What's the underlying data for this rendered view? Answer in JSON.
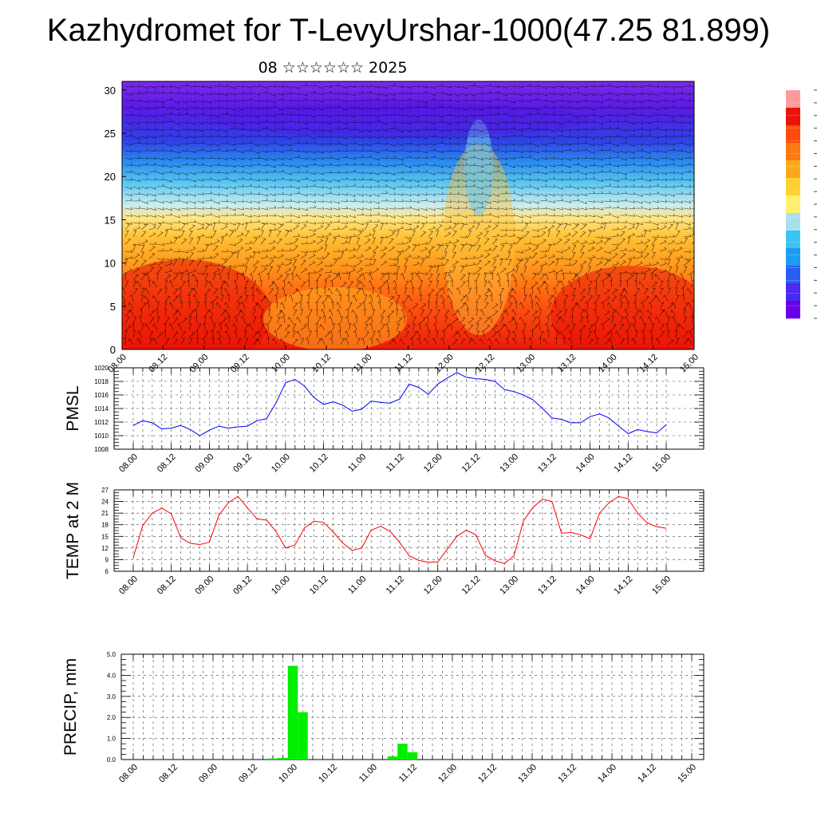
{
  "header": {
    "title": "Kazhydromet for T-LevyUrshar-1000(47.25 81.899)",
    "subtitle": "08 ☆☆☆☆☆☆ 2025"
  },
  "colors": {
    "pmsl_line": "#0000ff",
    "temp_line": "#ff0000",
    "precip_bar": "#00ee00",
    "frame": "#000000",
    "grid": "#000000"
  },
  "chart_data": [
    {
      "type": "heatmap",
      "id": "section",
      "title": "",
      "xlabel": "",
      "ylabel": "",
      "x_tick_labels": [
        "08.00",
        "08.12",
        "09.00",
        "09.12",
        "10.00",
        "10.12",
        "11.00",
        "11.12",
        "12.00",
        "12.12",
        "13.00",
        "13.12",
        "14.00",
        "14.12",
        "15.00"
      ],
      "ylim": [
        0,
        31
      ],
      "yticks": [
        0,
        5,
        10,
        15,
        20,
        25,
        30
      ],
      "wind_barbs": true,
      "colorbar": {
        "colors": [
          "#6a00e8",
          "#4a2af0",
          "#2a5ef2",
          "#1c9cf2",
          "#3cc4f0",
          "#a8e0ee",
          "#fff070",
          "#ffd030",
          "#ffa91a",
          "#ff7a10",
          "#ff4a0a",
          "#e8140a",
          "#ff9a9a"
        ]
      }
    },
    {
      "type": "line",
      "id": "pmsl",
      "ylabel": "PMSL",
      "ylim": [
        1008,
        1020
      ],
      "yticks": [
        1008,
        1010,
        1012,
        1014,
        1016,
        1018,
        1020
      ],
      "x_tick_labels": [
        "08.00",
        "08.12",
        "09.00",
        "09.12",
        "10.00",
        "10.12",
        "11.00",
        "11.12",
        "12.00",
        "12.12",
        "13.00",
        "13.12",
        "14.00",
        "14.12",
        "15.00"
      ],
      "x_step_hours": 3,
      "values": [
        1011.5,
        1012.2,
        1011.9,
        1011.0,
        1011.1,
        1011.5,
        1010.9,
        1010.0,
        1010.8,
        1011.4,
        1011.1,
        1011.3,
        1011.4,
        1012.2,
        1012.5,
        1014.8,
        1017.8,
        1018.3,
        1017.3,
        1015.6,
        1014.6,
        1015.0,
        1014.5,
        1013.6,
        1013.9,
        1015.1,
        1014.9,
        1014.8,
        1015.4,
        1017.6,
        1017.1,
        1016.1,
        1017.6,
        1018.5,
        1019.3,
        1018.6,
        1018.4,
        1018.3,
        1018.0,
        1016.8,
        1016.5,
        1016.0,
        1015.3,
        1014.0,
        1012.6,
        1012.4,
        1011.9,
        1011.9,
        1012.8,
        1013.2,
        1012.6,
        1011.4,
        1010.3,
        1010.9,
        1010.6,
        1010.4,
        1011.6
      ]
    },
    {
      "type": "line",
      "id": "temp",
      "ylabel": "TEMP at 2 M",
      "ylim": [
        6,
        27
      ],
      "yticks": [
        6,
        9,
        12,
        15,
        18,
        21,
        24,
        27
      ],
      "x_tick_labels": [
        "08.00",
        "08.12",
        "09.00",
        "09.12",
        "10.00",
        "10.12",
        "11.00",
        "11.12",
        "12.00",
        "12.12",
        "13.00",
        "13.12",
        "14.00",
        "14.12",
        "15.00"
      ],
      "x_step_hours": 3,
      "values": [
        9.5,
        17.8,
        21.0,
        22.3,
        20.8,
        14.6,
        13.2,
        12.9,
        13.5,
        20.5,
        23.7,
        25.3,
        22.4,
        19.5,
        19.2,
        16.3,
        12.0,
        12.8,
        17.2,
        18.9,
        18.6,
        16.2,
        13.3,
        11.4,
        12.0,
        16.6,
        17.6,
        16.3,
        13.4,
        10.0,
        8.8,
        8.3,
        8.4,
        11.7,
        15.0,
        16.6,
        15.4,
        10.1,
        8.7,
        8.0,
        10.0,
        19.0,
        22.5,
        24.6,
        24.0,
        15.8,
        16.0,
        15.4,
        14.4,
        21.0,
        23.7,
        25.3,
        24.7,
        21.0,
        18.5,
        17.5,
        17.1
      ]
    },
    {
      "type": "bar",
      "id": "precip",
      "ylabel": "PRECIP, mm",
      "ylim": [
        0,
        5
      ],
      "yticks": [
        "0.0",
        "1.0",
        "2.0",
        "3.0",
        "4.0",
        "5.0"
      ],
      "x_tick_labels": [
        "08.00",
        "08.12",
        "09.00",
        "09.12",
        "10.00",
        "10.12",
        "11.00",
        "11.12",
        "12.00",
        "12.12",
        "13.00",
        "13.12",
        "14.00",
        "14.12",
        "15.00"
      ],
      "x_step_hours": 3,
      "values": [
        0,
        0,
        0,
        0,
        0,
        0,
        0,
        0,
        0,
        0,
        0,
        0,
        0,
        0,
        0.05,
        0.08,
        4.45,
        2.25,
        0,
        0,
        0,
        0,
        0,
        0,
        0,
        0,
        0.15,
        0.75,
        0.35,
        0,
        0,
        0,
        0,
        0,
        0,
        0,
        0,
        0,
        0,
        0,
        0,
        0,
        0,
        0,
        0,
        0,
        0,
        0,
        0,
        0,
        0,
        0,
        0,
        0,
        0,
        0
      ]
    }
  ]
}
